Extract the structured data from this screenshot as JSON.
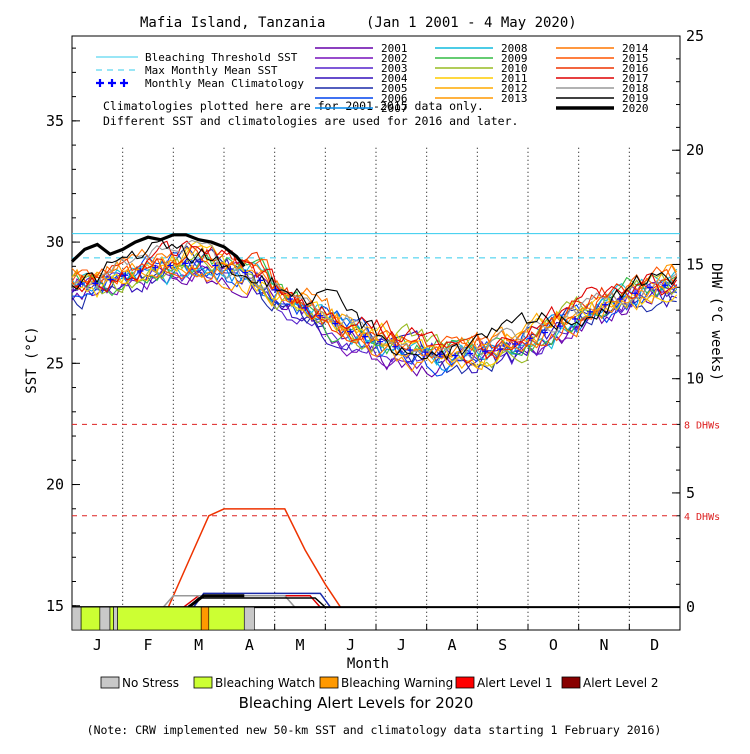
{
  "chart_data": {
    "type": "line",
    "title": "Mafia Island, Tanzania",
    "subtitle": "(Jan 1 2001 - 4 May 2020)",
    "xlabel": "Month",
    "ylabel_left": "SST (°C)",
    "ylabel_right": "DHW (°C weeks)",
    "months": [
      "J",
      "F",
      "M",
      "A",
      "M",
      "J",
      "J",
      "A",
      "S",
      "O",
      "N",
      "D"
    ],
    "ylim_sst": [
      14,
      38.5
    ],
    "ylim_dhw": [
      -1,
      25
    ],
    "sst_ticks": [
      15,
      20,
      25,
      30,
      35
    ],
    "dhw_ticks": [
      0,
      5,
      10,
      15,
      20,
      25
    ],
    "bleaching_threshold_sst": 30.35,
    "max_monthly_mean_sst": 29.35,
    "dhw_reference_lines": [
      {
        "value": 8,
        "label": "8 DHWs"
      },
      {
        "value": 4,
        "label": "4 DHWs"
      }
    ],
    "reference_legend": [
      {
        "label": "Bleaching Threshold SST",
        "color": "#33ccee",
        "style": "solid"
      },
      {
        "label": "Max Monthly Mean SST",
        "color": "#33ccee",
        "style": "dashed"
      },
      {
        "label": "Monthly Mean Climatology",
        "color": "#0000ff",
        "style": "plus"
      }
    ],
    "climatology_note": [
      "Climatologies plotted here are for 2001-2015 data only.",
      "Different SST and climatologies are used for 2016 and later."
    ],
    "climatology_monthly": [
      28.3,
      28.9,
      29.2,
      28.7,
      27.4,
      26.3,
      25.6,
      25.3,
      25.6,
      26.4,
      27.4,
      28.2
    ],
    "year_series": [
      {
        "name": "2001",
        "color": "#6600aa"
      },
      {
        "name": "2002",
        "color": "#7711bb"
      },
      {
        "name": "2003",
        "color": "#5522cc"
      },
      {
        "name": "2004",
        "color": "#3311bb"
      },
      {
        "name": "2005",
        "color": "#1a2aa8"
      },
      {
        "name": "2006",
        "color": "#0044ee"
      },
      {
        "name": "2007",
        "color": "#0088ee"
      },
      {
        "name": "2008",
        "color": "#11bbdd"
      },
      {
        "name": "2009",
        "color": "#33bb44"
      },
      {
        "name": "2010",
        "color": "#99bb22"
      },
      {
        "name": "2011",
        "color": "#ffcc00"
      },
      {
        "name": "2012",
        "color": "#ffaa00"
      },
      {
        "name": "2013",
        "color": "#ff9900"
      },
      {
        "name": "2014",
        "color": "#ff7700"
      },
      {
        "name": "2015",
        "color": "#ff5500"
      },
      {
        "name": "2016",
        "color": "#ee3300"
      },
      {
        "name": "2017",
        "color": "#dd0000"
      },
      {
        "name": "2018",
        "color": "#999999"
      },
      {
        "name": "2019",
        "color": "#000000"
      },
      {
        "name": "2020",
        "color": "#000000"
      }
    ],
    "series_2020_sst": {
      "x": [
        0,
        0.25,
        0.5,
        0.75,
        1,
        1.25,
        1.5,
        1.75,
        2,
        2.25,
        2.5,
        2.75,
        3,
        3.25,
        3.4
      ],
      "y": [
        29.2,
        29.7,
        29.9,
        29.5,
        29.7,
        30.0,
        30.2,
        30.1,
        30.3,
        30.3,
        30.1,
        30.0,
        29.8,
        29.4,
        29.0
      ]
    },
    "dhw_series": [
      {
        "name": "2016",
        "color": "#ee3300",
        "x": [
          1.9,
          2.3,
          2.7,
          3.0,
          4.2,
          4.6,
          5.0,
          5.3
        ],
        "y": [
          0,
          2,
          4,
          4.3,
          4.3,
          2.5,
          1,
          0
        ]
      },
      {
        "name": "2017",
        "color": "#dd0000",
        "x": [
          2.2,
          2.5,
          4.7,
          4.9
        ],
        "y": [
          0,
          0.5,
          0.5,
          0
        ]
      },
      {
        "name": "2018",
        "color": "#999999",
        "x": [
          1.8,
          2.0,
          4.2,
          4.4
        ],
        "y": [
          0,
          0.5,
          0.5,
          0
        ]
      },
      {
        "name": "2019",
        "color": "#000000",
        "x": [
          2.3,
          2.5,
          4.8,
          5.0
        ],
        "y": [
          0,
          0.4,
          0.4,
          0
        ]
      },
      {
        "name": "2005",
        "color": "#1a2aa8",
        "x": [
          2.4,
          2.6,
          4.9,
          5.1
        ],
        "y": [
          0,
          0.6,
          0.6,
          0
        ]
      },
      {
        "name": "2020",
        "color": "#000000",
        "x": [
          2.3,
          2.6,
          3.4
        ],
        "y": [
          0,
          0.5,
          0.5
        ]
      }
    ],
    "alert_bar_2020": [
      {
        "start": 0,
        "end": 0.18,
        "level": "No Stress"
      },
      {
        "start": 0.18,
        "end": 0.55,
        "level": "Bleaching Watch"
      },
      {
        "start": 0.55,
        "end": 0.75,
        "level": "No Stress"
      },
      {
        "start": 0.75,
        "end": 0.82,
        "level": "Bleaching Watch"
      },
      {
        "start": 0.82,
        "end": 0.9,
        "level": "No Stress"
      },
      {
        "start": 0.9,
        "end": 2.55,
        "level": "Bleaching Watch"
      },
      {
        "start": 2.55,
        "end": 2.7,
        "level": "Bleaching Warning"
      },
      {
        "start": 2.7,
        "end": 3.4,
        "level": "Bleaching Watch"
      },
      {
        "start": 3.4,
        "end": 3.6,
        "level": "No Stress"
      }
    ],
    "alert_legend_title": "Bleaching Alert Levels for 2020",
    "alert_legend": [
      {
        "label": "No Stress",
        "color": "#c8c8c8"
      },
      {
        "label": "Bleaching Watch",
        "color": "#ccff33"
      },
      {
        "label": "Bleaching Warning",
        "color": "#ff9900"
      },
      {
        "label": "Alert Level 1",
        "color": "#ff0000"
      },
      {
        "label": "Alert Level 2",
        "color": "#880000"
      }
    ],
    "footnote": "(Note: CRW implemented new 50-km SST and climatology data starting 1 February 2016)"
  }
}
